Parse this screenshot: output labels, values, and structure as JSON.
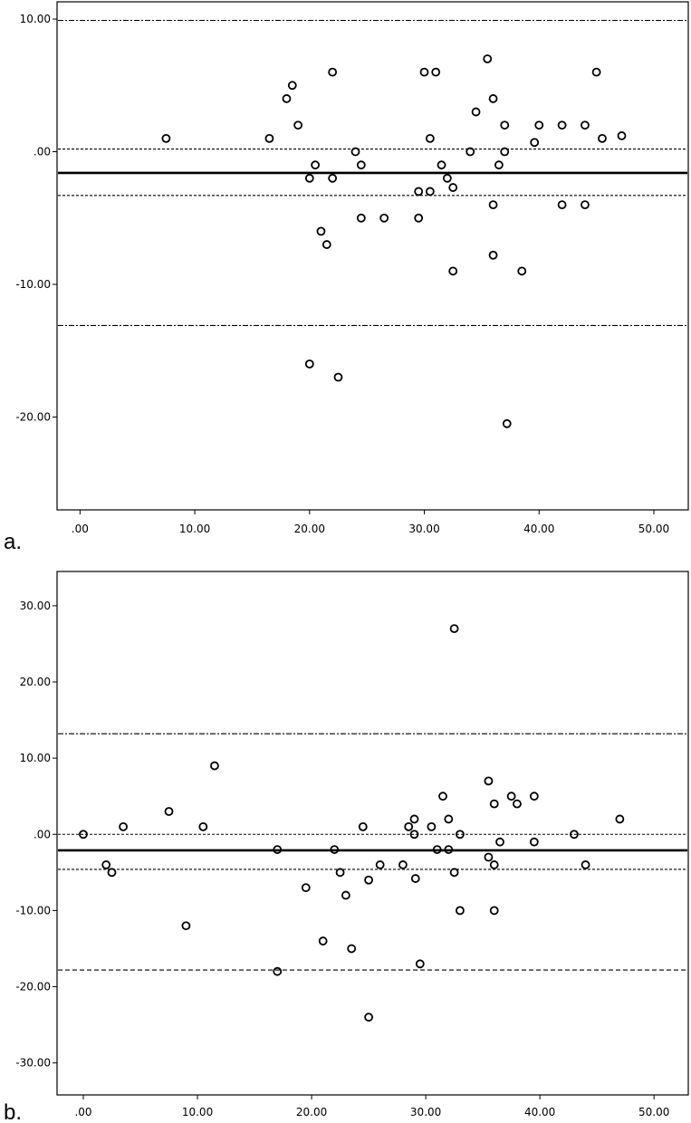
{
  "chart_data": [
    {
      "type": "scatter",
      "panel_label": "a.",
      "xlim": [
        -2,
        53
      ],
      "ylim": [
        -27,
        11.3
      ],
      "x_ticks": [
        0,
        10,
        20,
        30,
        40,
        50
      ],
      "x_tick_labels": [
        ".00",
        "10.00",
        "20.00",
        "30.00",
        "40.00",
        "50.00"
      ],
      "y_ticks": [
        10,
        0,
        -10,
        -20
      ],
      "y_tick_labels": [
        "10.00",
        ".00",
        "-10.00",
        "-20.00"
      ],
      "reference_lines": [
        {
          "y": 9.9,
          "style": "dash-dot"
        },
        {
          "y": 0.2,
          "style": "dotted"
        },
        {
          "y": -1.6,
          "style": "solid"
        },
        {
          "y": -3.3,
          "style": "dotted"
        },
        {
          "y": -13.1,
          "style": "dash-dot"
        }
      ],
      "points": [
        [
          7.5,
          1
        ],
        [
          16.5,
          1
        ],
        [
          18,
          4
        ],
        [
          18.5,
          5
        ],
        [
          19,
          2
        ],
        [
          20,
          -2
        ],
        [
          20,
          -16
        ],
        [
          20.5,
          -1
        ],
        [
          21,
          -6
        ],
        [
          21.5,
          -7
        ],
        [
          22,
          6
        ],
        [
          22,
          -2
        ],
        [
          22.5,
          -17
        ],
        [
          24,
          0
        ],
        [
          24.5,
          -1
        ],
        [
          24.5,
          -5
        ],
        [
          26.5,
          -5
        ],
        [
          29.5,
          -3
        ],
        [
          29.5,
          -5
        ],
        [
          30,
          6
        ],
        [
          30.5,
          1
        ],
        [
          30.5,
          -3
        ],
        [
          31,
          6
        ],
        [
          31.5,
          -1
        ],
        [
          32,
          -2
        ],
        [
          32.5,
          -9
        ],
        [
          32.5,
          -2.7
        ],
        [
          34,
          0
        ],
        [
          34.5,
          3
        ],
        [
          35.5,
          7
        ],
        [
          36,
          4
        ],
        [
          36,
          -4
        ],
        [
          36,
          -7.8
        ],
        [
          36.5,
          -1
        ],
        [
          37,
          2
        ],
        [
          37,
          0
        ],
        [
          37.2,
          -20.5
        ],
        [
          38.5,
          -9
        ],
        [
          39.6,
          0.7
        ],
        [
          40,
          2
        ],
        [
          42,
          2
        ],
        [
          42,
          -4
        ],
        [
          44,
          2
        ],
        [
          44,
          -4
        ],
        [
          45,
          6
        ],
        [
          45.5,
          1
        ],
        [
          47.2,
          1.2
        ]
      ]
    },
    {
      "type": "scatter",
      "panel_label": "b.",
      "xlim": [
        -2.3,
        53
      ],
      "ylim": [
        -34.2,
        34.5
      ],
      "x_ticks": [
        0,
        10,
        20,
        30,
        40,
        50
      ],
      "x_tick_labels": [
        ".00",
        "10.00",
        "20.00",
        "30.00",
        "40.00",
        "50.00"
      ],
      "y_ticks": [
        30,
        20,
        10,
        0,
        -10,
        -20,
        -30
      ],
      "y_tick_labels": [
        "30.00",
        "20.00",
        "10.00",
        ".00",
        "-10.00",
        "-20.00",
        "-30.00"
      ],
      "reference_lines": [
        {
          "y": 13.2,
          "style": "dash-dot"
        },
        {
          "y": 0,
          "style": "dotted"
        },
        {
          "y": -2.1,
          "style": "solid"
        },
        {
          "y": -4.6,
          "style": "dotted"
        },
        {
          "y": -17.8,
          "style": "dashed"
        }
      ],
      "points": [
        [
          0,
          0
        ],
        [
          2,
          -4
        ],
        [
          2.5,
          -5
        ],
        [
          3.5,
          1
        ],
        [
          7.5,
          3
        ],
        [
          9,
          -12
        ],
        [
          10.5,
          1
        ],
        [
          11.5,
          9
        ],
        [
          17,
          -2
        ],
        [
          17,
          -18
        ],
        [
          19.5,
          -7
        ],
        [
          21,
          -14
        ],
        [
          22,
          -2
        ],
        [
          22.5,
          -5
        ],
        [
          23,
          -8
        ],
        [
          23.5,
          -15
        ],
        [
          24.5,
          1
        ],
        [
          25,
          -6
        ],
        [
          25,
          -24
        ],
        [
          26,
          -4
        ],
        [
          28,
          -4
        ],
        [
          28.5,
          1
        ],
        [
          29,
          2
        ],
        [
          29,
          0
        ],
        [
          29.1,
          -5.8
        ],
        [
          29.5,
          -17
        ],
        [
          30.5,
          1
        ],
        [
          31,
          -2
        ],
        [
          31.5,
          5
        ],
        [
          32,
          2
        ],
        [
          32,
          -2
        ],
        [
          32.5,
          27
        ],
        [
          32.5,
          -5
        ],
        [
          33,
          0
        ],
        [
          33,
          -10
        ],
        [
          35.5,
          7
        ],
        [
          35.5,
          -3
        ],
        [
          36,
          4
        ],
        [
          36,
          -4
        ],
        [
          36,
          -10
        ],
        [
          36.5,
          -1
        ],
        [
          37.5,
          5
        ],
        [
          38,
          4
        ],
        [
          39.5,
          5
        ],
        [
          39.5,
          -1
        ],
        [
          43,
          0
        ],
        [
          44,
          -4
        ],
        [
          47,
          2
        ]
      ]
    }
  ]
}
